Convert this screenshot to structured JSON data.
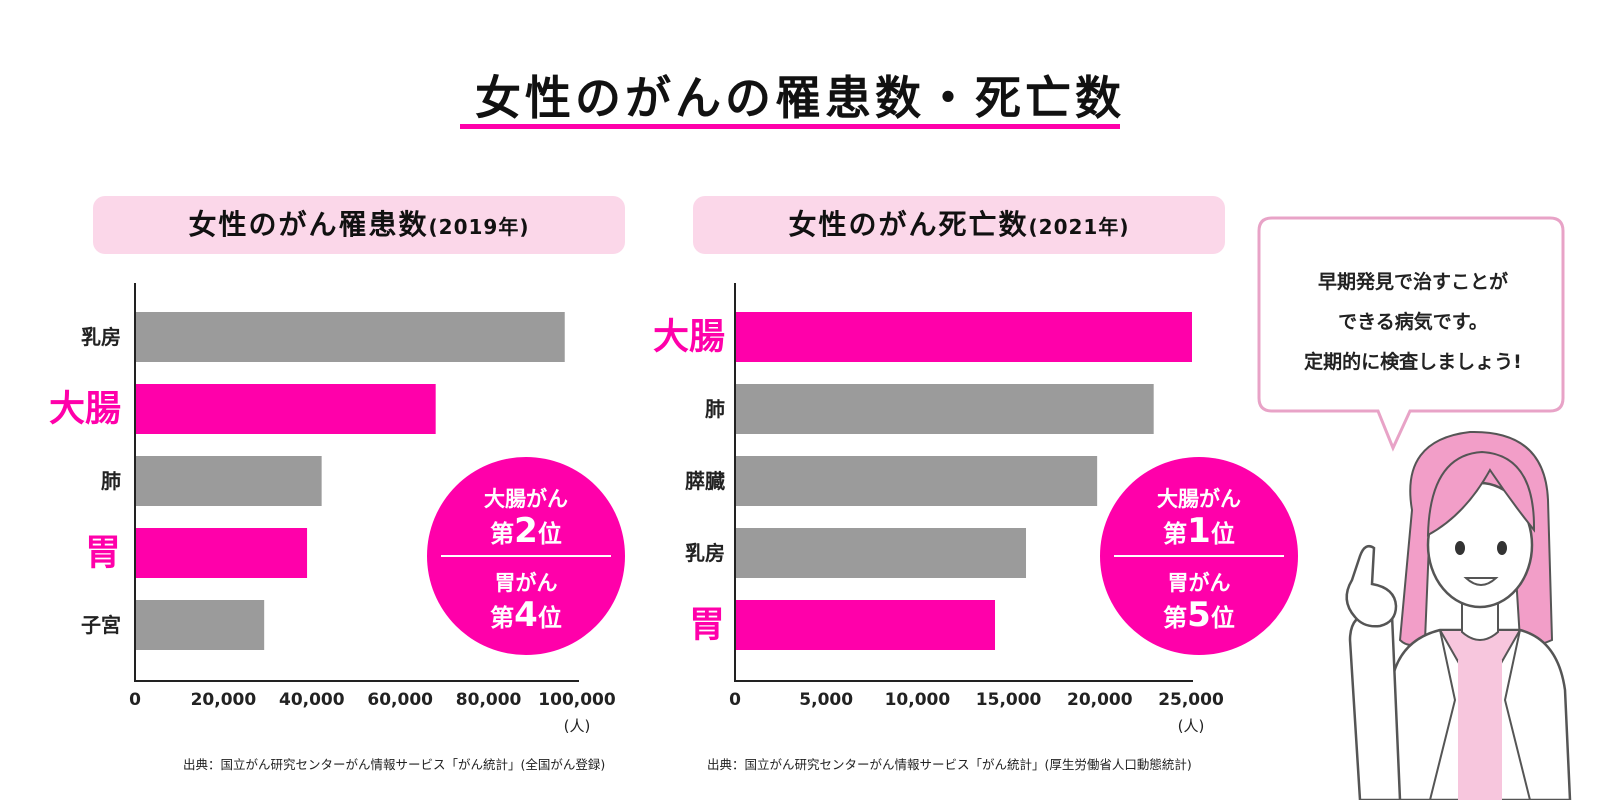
{
  "title": "女性のがんの罹患数・死亡数",
  "charts": [
    {
      "header_title": "女性のがん罹患数",
      "header_year": "(2019年)",
      "source": "出典：国立がん研究センターがん情報サービス「がん統計」(全国がん登録)",
      "badge": {
        "top_name": "大腸がん",
        "top_prefix": "第",
        "top_num": "2",
        "top_suffix": "位",
        "bottom_name": "胃がん",
        "bottom_prefix": "第",
        "bottom_num": "4",
        "bottom_suffix": "位"
      }
    },
    {
      "header_title": "女性のがん死亡数",
      "header_year": "(2021年)",
      "source": "出典：国立がん研究センターがん情報サービス「がん統計」(厚生労働省人口動態統計)",
      "badge": {
        "top_name": "大腸がん",
        "top_prefix": "第",
        "top_num": "1",
        "top_suffix": "位",
        "bottom_name": "胃がん",
        "bottom_prefix": "第",
        "bottom_num": "5",
        "bottom_suffix": "位"
      }
    }
  ],
  "bubble": {
    "lines": [
      "早期発見で治すことが",
      "できる病気です。",
      "定期的に検査しましょう!"
    ]
  },
  "colors": {
    "accent": "#ff00aa",
    "bar_gray": "#9b9b9b",
    "header_bg": "#fbd7e9",
    "bubble_border": "#e8a3c7"
  },
  "chart_data": [
    {
      "type": "bar",
      "orientation": "horizontal",
      "categories": [
        "乳房",
        "大腸",
        "肺",
        "胃",
        "子宮"
      ],
      "values": [
        97000,
        67800,
        42000,
        38700,
        29000
      ],
      "highlight": [
        false,
        true,
        false,
        true,
        false
      ],
      "xlim": [
        0,
        100000
      ],
      "xticks": [
        "0",
        "20,000",
        "40,000",
        "60,000",
        "80,000",
        "100,000"
      ],
      "xtick_values": [
        0,
        20000,
        40000,
        60000,
        80000,
        100000
      ],
      "unit": "(人)"
    },
    {
      "type": "bar",
      "orientation": "horizontal",
      "categories": [
        "大腸",
        "肺",
        "膵臓",
        "乳房",
        "胃"
      ],
      "values": [
        25000,
        22900,
        19800,
        15900,
        14200
      ],
      "highlight": [
        true,
        false,
        false,
        false,
        true
      ],
      "xlim": [
        0,
        25000
      ],
      "xticks": [
        "0",
        "5,000",
        "10,000",
        "15,000",
        "20,000",
        "25,000"
      ],
      "xtick_values": [
        0,
        5000,
        10000,
        15000,
        20000,
        25000
      ],
      "unit": "(人)"
    }
  ]
}
